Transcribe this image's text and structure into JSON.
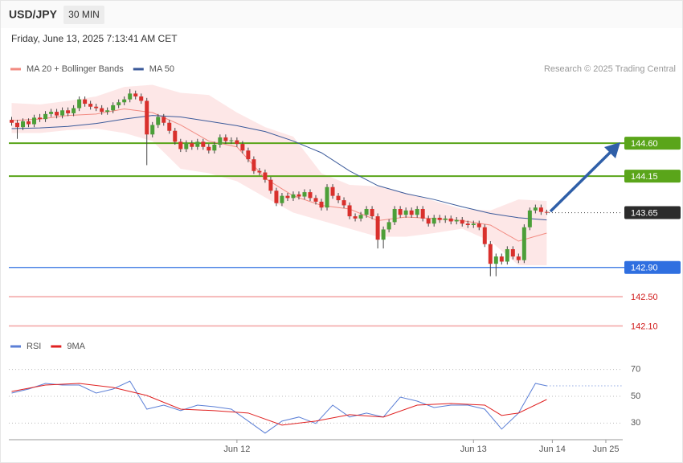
{
  "header": {
    "symbol": "USD/JPY",
    "timeframe": "30 MIN",
    "timestamp": "Friday, June 13, 2025 7:13:41 AM CET"
  },
  "chart_data": [
    {
      "type": "candlestick",
      "credit": "Research © 2025 Trading Central",
      "xlim": [
        -0.5,
        108.5
      ],
      "ylim": [
        142.05,
        145.9
      ],
      "up_color": "#4c9f38",
      "down_color": "#d9302c",
      "x": [
        0,
        1,
        2,
        3,
        4,
        5,
        6,
        7,
        8,
        9,
        10,
        11,
        12,
        13,
        14,
        15,
        16,
        17,
        18,
        19,
        20,
        21,
        22,
        23,
        24,
        25,
        26,
        27,
        28,
        29,
        30,
        31,
        32,
        33,
        34,
        35,
        36,
        37,
        38,
        39,
        40,
        41,
        42,
        43,
        44,
        45,
        46,
        47,
        48,
        49,
        50,
        51,
        52,
        53,
        54,
        55,
        56,
        57,
        58,
        59,
        60,
        61,
        62,
        63,
        64,
        65,
        66,
        67,
        68,
        69,
        70,
        71,
        72,
        73,
        74,
        75,
        76,
        77,
        78,
        79,
        80,
        81,
        82,
        83,
        84,
        85,
        86,
        87,
        88,
        89,
        90,
        91,
        92,
        93,
        94,
        95
      ],
      "ohlc": [
        [
          144.92,
          144.96,
          144.84,
          144.88
        ],
        [
          144.88,
          144.92,
          144.66,
          144.82
        ],
        [
          144.82,
          144.94,
          144.78,
          144.9
        ],
        [
          144.9,
          144.94,
          144.82,
          144.86
        ],
        [
          144.86,
          144.99,
          144.82,
          144.95
        ],
        [
          144.95,
          145.0,
          144.89,
          144.93
        ],
        [
          144.93,
          145.04,
          144.89,
          145.0
        ],
        [
          145.0,
          145.07,
          144.96,
          145.03
        ],
        [
          145.03,
          145.07,
          144.94,
          144.98
        ],
        [
          144.98,
          145.09,
          144.94,
          145.05
        ],
        [
          145.05,
          145.09,
          144.97,
          145.01
        ],
        [
          145.01,
          145.12,
          144.97,
          145.08
        ],
        [
          145.08,
          145.24,
          145.04,
          145.2
        ],
        [
          145.2,
          145.24,
          145.1,
          145.14
        ],
        [
          145.14,
          145.18,
          145.06,
          145.1
        ],
        [
          145.1,
          145.14,
          145.04,
          145.08
        ],
        [
          145.08,
          145.12,
          144.99,
          145.03
        ],
        [
          145.03,
          145.09,
          144.99,
          145.05
        ],
        [
          145.05,
          145.16,
          145.01,
          145.12
        ],
        [
          145.12,
          145.2,
          145.08,
          145.16
        ],
        [
          145.16,
          145.24,
          145.12,
          145.2
        ],
        [
          145.2,
          145.34,
          145.16,
          145.28
        ],
        [
          145.28,
          145.32,
          145.2,
          145.24
        ],
        [
          145.24,
          145.28,
          145.14,
          145.18
        ],
        [
          145.18,
          145.22,
          144.3,
          144.72
        ],
        [
          144.72,
          144.89,
          144.68,
          144.85
        ],
        [
          144.85,
          145.0,
          144.81,
          144.96
        ],
        [
          144.96,
          145.0,
          144.84,
          144.88
        ],
        [
          144.88,
          144.92,
          144.73,
          144.77
        ],
        [
          144.77,
          144.81,
          144.58,
          144.62
        ],
        [
          144.62,
          144.66,
          144.48,
          144.52
        ],
        [
          144.52,
          144.64,
          144.48,
          144.6
        ],
        [
          144.6,
          144.64,
          144.51,
          144.55
        ],
        [
          144.55,
          144.66,
          144.51,
          144.62
        ],
        [
          144.62,
          144.66,
          144.51,
          144.55
        ],
        [
          144.55,
          144.59,
          144.46,
          144.5
        ],
        [
          144.5,
          144.62,
          144.46,
          144.58
        ],
        [
          144.58,
          144.72,
          144.54,
          144.68
        ],
        [
          144.68,
          144.72,
          144.59,
          144.63
        ],
        [
          144.63,
          144.68,
          144.59,
          144.64
        ],
        [
          144.64,
          144.68,
          144.55,
          144.59
        ],
        [
          144.59,
          144.63,
          144.46,
          144.5
        ],
        [
          144.5,
          144.54,
          144.34,
          144.38
        ],
        [
          144.38,
          144.42,
          144.18,
          144.22
        ],
        [
          144.22,
          144.26,
          144.16,
          144.2
        ],
        [
          144.2,
          144.24,
          144.06,
          144.1
        ],
        [
          144.1,
          144.14,
          143.91,
          143.95
        ],
        [
          143.95,
          143.99,
          143.74,
          143.78
        ],
        [
          143.78,
          143.92,
          143.74,
          143.88
        ],
        [
          143.88,
          143.92,
          143.81,
          143.85
        ],
        [
          143.85,
          143.94,
          143.81,
          143.9
        ],
        [
          143.9,
          143.94,
          143.83,
          143.87
        ],
        [
          143.87,
          143.97,
          143.83,
          143.93
        ],
        [
          143.93,
          143.97,
          143.81,
          143.85
        ],
        [
          143.85,
          143.89,
          143.76,
          143.8
        ],
        [
          143.8,
          143.84,
          143.68,
          143.72
        ],
        [
          143.72,
          144.04,
          143.68,
          144.0
        ],
        [
          144.0,
          144.04,
          143.84,
          143.88
        ],
        [
          143.88,
          143.92,
          143.78,
          143.82
        ],
        [
          143.82,
          143.86,
          143.71,
          143.75
        ],
        [
          143.75,
          143.79,
          143.56,
          143.6
        ],
        [
          143.6,
          143.64,
          143.53,
          143.57
        ],
        [
          143.57,
          143.66,
          143.53,
          143.62
        ],
        [
          143.62,
          143.74,
          143.58,
          143.7
        ],
        [
          143.7,
          143.74,
          143.56,
          143.6
        ],
        [
          143.6,
          143.64,
          143.16,
          143.28
        ],
        [
          143.28,
          143.46,
          143.16,
          143.42
        ],
        [
          143.42,
          143.56,
          143.38,
          143.52
        ],
        [
          143.52,
          143.74,
          143.48,
          143.7
        ],
        [
          143.7,
          143.74,
          143.58,
          143.62
        ],
        [
          143.62,
          143.72,
          143.58,
          143.68
        ],
        [
          143.68,
          143.72,
          143.58,
          143.62
        ],
        [
          143.62,
          143.74,
          143.58,
          143.7
        ],
        [
          143.7,
          143.74,
          143.53,
          143.57
        ],
        [
          143.57,
          143.61,
          143.46,
          143.5
        ],
        [
          143.5,
          143.62,
          143.46,
          143.58
        ],
        [
          143.58,
          143.62,
          143.51,
          143.55
        ],
        [
          143.55,
          143.61,
          143.51,
          143.57
        ],
        [
          143.57,
          143.61,
          143.49,
          143.53
        ],
        [
          143.53,
          143.59,
          143.49,
          143.55
        ],
        [
          143.55,
          143.59,
          143.46,
          143.5
        ],
        [
          143.5,
          143.54,
          143.44,
          143.48
        ],
        [
          143.48,
          143.54,
          143.44,
          143.5
        ],
        [
          143.5,
          143.54,
          143.41,
          143.45
        ],
        [
          143.45,
          143.49,
          143.18,
          143.22
        ],
        [
          143.22,
          143.26,
          142.78,
          142.95
        ],
        [
          142.95,
          143.09,
          142.78,
          143.05
        ],
        [
          143.05,
          143.09,
          142.94,
          142.98
        ],
        [
          142.98,
          143.19,
          142.94,
          143.15
        ],
        [
          143.15,
          143.19,
          143.01,
          143.05
        ],
        [
          143.05,
          143.09,
          142.96,
          143.0
        ],
        [
          143.0,
          143.49,
          142.96,
          143.45
        ],
        [
          143.45,
          143.72,
          143.41,
          143.68
        ],
        [
          143.68,
          143.76,
          143.64,
          143.72
        ],
        [
          143.72,
          143.76,
          143.62,
          143.66
        ],
        [
          143.66,
          143.69,
          143.62,
          143.65
        ]
      ],
      "overlays": [
        {
          "name": "MA 20 + Bollinger Bands",
          "color": "#f28b82",
          "band_color": "#fde3e3",
          "x": [
            0,
            5,
            10,
            15,
            20,
            25,
            30,
            35,
            40,
            45,
            50,
            55,
            60,
            65,
            70,
            75,
            80,
            85,
            90,
            95
          ],
          "values": [
            144.91,
            144.93,
            144.98,
            145.0,
            145.07,
            145.02,
            144.85,
            144.63,
            144.55,
            144.12,
            143.88,
            143.75,
            143.7,
            143.54,
            143.59,
            143.57,
            143.54,
            143.48,
            143.26,
            143.37
          ],
          "upper": [
            145.15,
            145.13,
            145.18,
            145.24,
            145.37,
            145.4,
            145.29,
            145.26,
            145.02,
            144.82,
            144.69,
            144.19,
            144.03,
            144.01,
            143.92,
            143.81,
            143.7,
            143.68,
            143.83,
            143.81
          ],
          "lower": [
            144.74,
            144.74,
            144.78,
            144.8,
            144.74,
            144.63,
            144.25,
            144.19,
            144.08,
            143.86,
            143.65,
            143.54,
            143.43,
            143.32,
            143.32,
            143.37,
            143.43,
            143.26,
            142.93,
            142.93
          ]
        },
        {
          "name": "MA 50",
          "color": "#3b5a9a",
          "x": [
            0,
            5,
            10,
            15,
            20,
            25,
            30,
            35,
            40,
            45,
            50,
            55,
            60,
            65,
            70,
            75,
            80,
            85,
            90,
            95
          ],
          "values": [
            144.8,
            144.81,
            144.83,
            144.87,
            144.93,
            144.98,
            144.96,
            144.9,
            144.84,
            144.76,
            144.63,
            144.47,
            144.22,
            144.02,
            143.91,
            143.83,
            143.73,
            143.64,
            143.58,
            143.55
          ]
        }
      ],
      "levels": [
        {
          "value": 144.6,
          "label": "144.60",
          "color": "#5aa51a",
          "style": "solid",
          "boxed": true
        },
        {
          "value": 144.15,
          "label": "144.15",
          "color": "#5aa51a",
          "style": "solid",
          "boxed": true
        },
        {
          "value": 143.65,
          "label": "143.65",
          "color": "#2b2b2b",
          "style": "dotted",
          "boxed": true
        },
        {
          "value": 142.9,
          "label": "142.90",
          "color": "#2f6fe0",
          "style": "solid",
          "boxed": true
        },
        {
          "value": 142.5,
          "label": "142.50",
          "color": "#f2a3a3",
          "style": "solid",
          "boxed": false
        },
        {
          "value": 142.1,
          "label": "142.10",
          "color": "#f2a3a3",
          "style": "solid",
          "boxed": false
        }
      ]
    },
    {
      "type": "line",
      "xlim": [
        -0.5,
        108.5
      ],
      "ylim": [
        20,
        80
      ],
      "yticks": [
        30,
        50,
        70
      ],
      "grid": true,
      "xticks": [
        {
          "value": 40,
          "label": "Jun 12"
        },
        {
          "value": 82,
          "label": "Jun 13"
        },
        {
          "value": 96,
          "label": "Jun 14"
        },
        {
          "value": 105.5,
          "label": "Jun 25"
        }
      ],
      "series": [
        {
          "name": "RSI",
          "color": "#5b7fd6",
          "x": [
            0,
            3,
            6,
            9,
            12,
            15,
            18,
            21,
            24,
            27,
            30,
            33,
            36,
            39,
            42,
            45,
            48,
            51,
            54,
            57,
            60,
            63,
            66,
            69,
            72,
            75,
            78,
            81,
            84,
            87,
            90,
            93,
            95
          ],
          "values": [
            52.4,
            55.4,
            59.6,
            58.4,
            58.4,
            52.4,
            55.4,
            61.3,
            40.4,
            43.4,
            39.3,
            43.4,
            42.2,
            40.4,
            31.5,
            22.5,
            31.5,
            34.5,
            29.7,
            43.4,
            34.5,
            37.5,
            34.5,
            49.4,
            46.4,
            41.6,
            43.4,
            43.4,
            40.4,
            25.5,
            37.5,
            59.6,
            57.8
          ]
        },
        {
          "name": "9MA",
          "color": "#e02020",
          "x": [
            0,
            6,
            12,
            18,
            24,
            30,
            36,
            42,
            48,
            54,
            60,
            66,
            72,
            78,
            84,
            87,
            90,
            95
          ],
          "values": [
            53.6,
            58.4,
            59.6,
            56.6,
            50.6,
            40.4,
            39.3,
            37.5,
            28.5,
            31.5,
            36.3,
            34.5,
            43.4,
            44.6,
            43.4,
            35.7,
            37.5,
            47.6
          ]
        }
      ]
    }
  ]
}
